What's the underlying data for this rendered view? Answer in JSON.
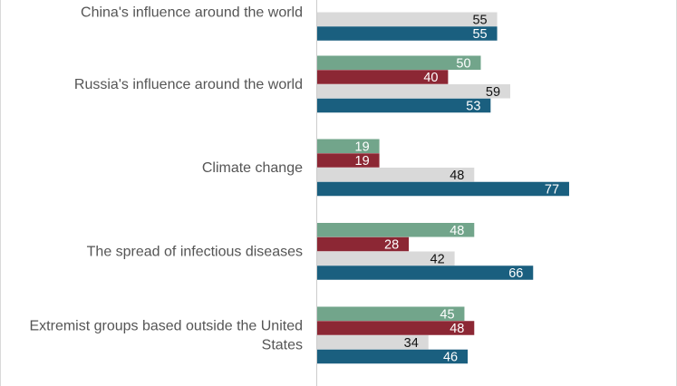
{
  "chart_data": {
    "type": "bar",
    "orientation": "horizontal",
    "categories": [
      [
        "China's influence around the world"
      ],
      [
        "Russia's influence around the world"
      ],
      [
        "Climate change"
      ],
      [
        "The spread of infectious diseases"
      ],
      [
        "Extremist groups based outside the United",
        "States"
      ]
    ],
    "series": [
      {
        "color": "#72a58b",
        "label_color": "#ffffff",
        "values": [
          null,
          50,
          19,
          48,
          45
        ]
      },
      {
        "color": "#8c2734",
        "label_color": "#ffffff",
        "values": [
          null,
          40,
          19,
          28,
          48
        ]
      },
      {
        "color": "#d9d9d9",
        "label_color": "#111111",
        "values": [
          55,
          59,
          48,
          42,
          34
        ]
      },
      {
        "color": "#1a5f7f",
        "label_color": "#ffffff",
        "values": [
          55,
          53,
          77,
          66,
          46
        ]
      }
    ],
    "xlim": [
      0,
      110
    ],
    "grid": false,
    "legend": "none"
  }
}
